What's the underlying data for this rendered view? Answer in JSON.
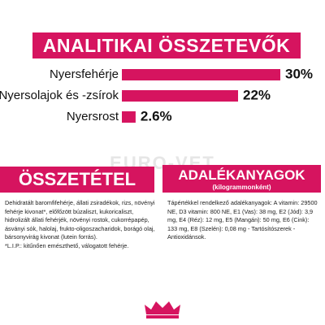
{
  "header": {
    "title": "ANALITIKAI ÖSSZETEVŐK"
  },
  "analytics": {
    "scale_max": 30,
    "color": "#d6145f",
    "items": [
      {
        "label": "Nyersfehérje",
        "value": 30,
        "value_label": "30%"
      },
      {
        "label": "Nyersolajok és -zsírok",
        "value": 22,
        "value_label": "22%"
      },
      {
        "label": "Nyersrost",
        "value": 2.6,
        "value_label": "2.6%"
      }
    ]
  },
  "watermark": "EURO-VET",
  "composition": {
    "title": "ÖSSZETÉTEL",
    "text": "Dehidratált baromfifehérje, állati zsiradékok, rizs, növényi fehérje kivonat*, előfőzött búzaliszt, kukoricaliszt, hidrolizált állati fehérjék, növényi rostok, cukorrépapép, ásványi sók, halolaj, frukto-oligoszacharidok, borágó olaj, bársonyvirág kivonat (lutein forrás).",
    "note": "*L.I.P.: kitűnően emészthető, válogatott fehérje."
  },
  "additives": {
    "title": "ADALÉKANYAGOK",
    "subtitle": "(kilogrammonként)",
    "text": "Tápértékkel rendelkező adalékanyagok: A vitamin: 29500 NE, D3 vitamin: 800 NE, E1 (Vas): 38 mg, E2 (Jód): 3,9 mg, E4 (Réz): 12 mg, E5 (Mangán): 50 mg, E6 (Cink): 133 mg, E8 (Szelén): 0,08 mg - Tartósítószerek - Antioxidánsok."
  }
}
